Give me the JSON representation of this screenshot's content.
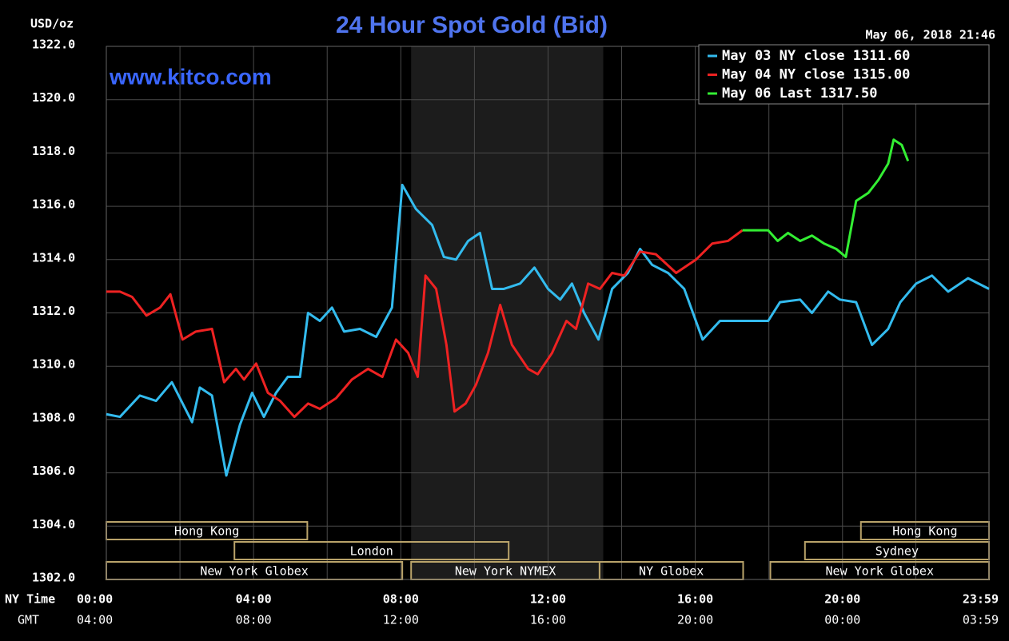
{
  "chart_data": {
    "type": "line",
    "title": "24 Hour Spot Gold (Bid)",
    "watermark": "www.kitco.com",
    "y_unit": "USD/oz",
    "timestamp": "May 06, 2018 21:46",
    "x_axis_label": "NY Time",
    "x2_axis_label": "GMT",
    "xlim": [
      0,
      23.98
    ],
    "ylim": [
      1302,
      1322
    ],
    "xticks": [
      {
        "value": 0,
        "label": "00:00"
      },
      {
        "value": 4,
        "label": "04:00"
      },
      {
        "value": 8,
        "label": "08:00"
      },
      {
        "value": 12,
        "label": "12:00"
      },
      {
        "value": 16,
        "label": "16:00"
      },
      {
        "value": 20,
        "label": "20:00"
      },
      {
        "value": 23.98,
        "label": "23:59"
      }
    ],
    "x2tick_labels": [
      "04:00",
      "08:00",
      "12:00",
      "16:00",
      "20:00",
      "00:00",
      "03:59"
    ],
    "yticks": [
      {
        "value": 1302,
        "label": "1302.0"
      },
      {
        "value": 1304,
        "label": "1304.0"
      },
      {
        "value": 1306,
        "label": "1306.0"
      },
      {
        "value": 1308,
        "label": "1308.0"
      },
      {
        "value": 1310,
        "label": "1310.0"
      },
      {
        "value": 1312,
        "label": "1312.0"
      },
      {
        "value": 1314,
        "label": "1314.0"
      },
      {
        "value": 1316,
        "label": "1316.0"
      },
      {
        "value": 1318,
        "label": "1318.0"
      },
      {
        "value": 1320,
        "label": "1320.0"
      },
      {
        "value": 1322,
        "label": "1322.0"
      }
    ],
    "grid": true,
    "shade": [
      8.28,
      13.5
    ],
    "session_rows": [
      [
        {
          "label": "Hong Kong",
          "start": 0,
          "end": 5.46
        },
        {
          "label": "Hong Kong",
          "start": 20.5,
          "end": 23.98
        }
      ],
      [
        {
          "label": "London",
          "start": 3.48,
          "end": 10.93
        },
        {
          "label": "Sydney",
          "start": 18.98,
          "end": 23.98
        }
      ],
      [
        {
          "label": "New York Globex",
          "start": 0,
          "end": 8.04
        },
        {
          "label": "New York NYMEX",
          "start": 8.28,
          "end": 13.4
        },
        {
          "label": "NY Globex",
          "start": 13.4,
          "end": 17.3
        },
        {
          "label": "New York Globex",
          "start": 18.04,
          "end": 23.98
        }
      ]
    ],
    "legend": "upper right",
    "series": [
      {
        "name": "May 03 NY close 1311.60",
        "color": "#33bbee",
        "x": [
          0,
          0.37,
          0.91,
          1.35,
          1.78,
          2.33,
          2.54,
          2.87,
          3.26,
          3.63,
          3.96,
          4.28,
          4.61,
          4.93,
          5.26,
          5.48,
          5.8,
          6.13,
          6.46,
          6.89,
          7.33,
          7.76,
          8.04,
          8.41,
          8.85,
          9.17,
          9.5,
          9.83,
          10.15,
          10.48,
          10.8,
          11.24,
          11.63,
          12,
          12.33,
          12.65,
          12.98,
          13.37,
          13.74,
          14.17,
          14.5,
          14.83,
          15.26,
          15.7,
          16.2,
          16.67,
          17.11,
          17.98,
          18.3,
          18.85,
          19.17,
          19.61,
          19.93,
          20.37,
          20.8,
          21.24,
          21.57,
          22,
          22.43,
          22.87,
          23.41,
          23.98
        ],
        "values": [
          1308.2,
          1308.1,
          1308.9,
          1308.7,
          1309.4,
          1307.9,
          1309.2,
          1308.9,
          1305.9,
          1307.8,
          1309.0,
          1308.1,
          1309.0,
          1309.6,
          1309.6,
          1312.0,
          1311.7,
          1312.2,
          1311.3,
          1311.4,
          1311.1,
          1312.2,
          1316.8,
          1315.9,
          1315.3,
          1314.1,
          1314.0,
          1314.7,
          1315.0,
          1312.9,
          1312.9,
          1313.1,
          1313.7,
          1312.9,
          1312.5,
          1313.1,
          1312.0,
          1311.0,
          1312.9,
          1313.5,
          1314.4,
          1313.8,
          1313.5,
          1312.9,
          1311.0,
          1311.7,
          1311.7,
          1311.7,
          1312.4,
          1312.5,
          1312.0,
          1312.8,
          1312.5,
          1312.4,
          1310.8,
          1311.4,
          1312.4,
          1313.1,
          1313.4,
          1312.8,
          1313.3,
          1312.9
        ]
      },
      {
        "name": "May 04 NY close 1315.00",
        "color": "#ee2222",
        "x": [
          0,
          0.37,
          0.7,
          1.09,
          1.46,
          1.74,
          2.07,
          2.43,
          2.87,
          3.2,
          3.52,
          3.74,
          4.07,
          4.39,
          4.72,
          5.11,
          5.48,
          5.8,
          6.24,
          6.67,
          7.11,
          7.5,
          7.87,
          8.2,
          8.46,
          8.67,
          8.96,
          9.24,
          9.46,
          9.76,
          10.04,
          10.37,
          10.7,
          11.02,
          11.46,
          11.72,
          12.11,
          12.5,
          12.76,
          13.09,
          13.41,
          13.74,
          14.07,
          14.5,
          14.93,
          15.48,
          16.02,
          16.46,
          16.89,
          17.28
        ],
        "values": [
          1312.8,
          1312.8,
          1312.6,
          1311.9,
          1312.2,
          1312.7,
          1311.0,
          1311.3,
          1311.4,
          1309.4,
          1309.9,
          1309.5,
          1310.1,
          1309.0,
          1308.7,
          1308.1,
          1308.6,
          1308.4,
          1308.8,
          1309.5,
          1309.9,
          1309.6,
          1311.0,
          1310.5,
          1309.6,
          1313.4,
          1312.9,
          1310.8,
          1308.3,
          1308.6,
          1309.3,
          1310.5,
          1312.3,
          1310.8,
          1309.9,
          1309.7,
          1310.5,
          1311.7,
          1311.4,
          1313.1,
          1312.9,
          1313.5,
          1313.4,
          1314.3,
          1314.2,
          1313.5,
          1314.0,
          1314.6,
          1314.7,
          1315.1
        ]
      },
      {
        "name": "May 06 Last 1317.50",
        "color": "#33ee33",
        "x": [
          17.28,
          17.98,
          18.24,
          18.52,
          18.85,
          19.17,
          19.5,
          19.83,
          20.09,
          20.37,
          20.7,
          20.98,
          21.24,
          21.39,
          21.61,
          21.78
        ],
        "values": [
          1315.1,
          1315.1,
          1314.7,
          1315.0,
          1314.7,
          1314.9,
          1314.6,
          1314.4,
          1314.1,
          1316.2,
          1316.5,
          1317.0,
          1317.6,
          1318.5,
          1318.3,
          1317.7
        ]
      }
    ]
  }
}
